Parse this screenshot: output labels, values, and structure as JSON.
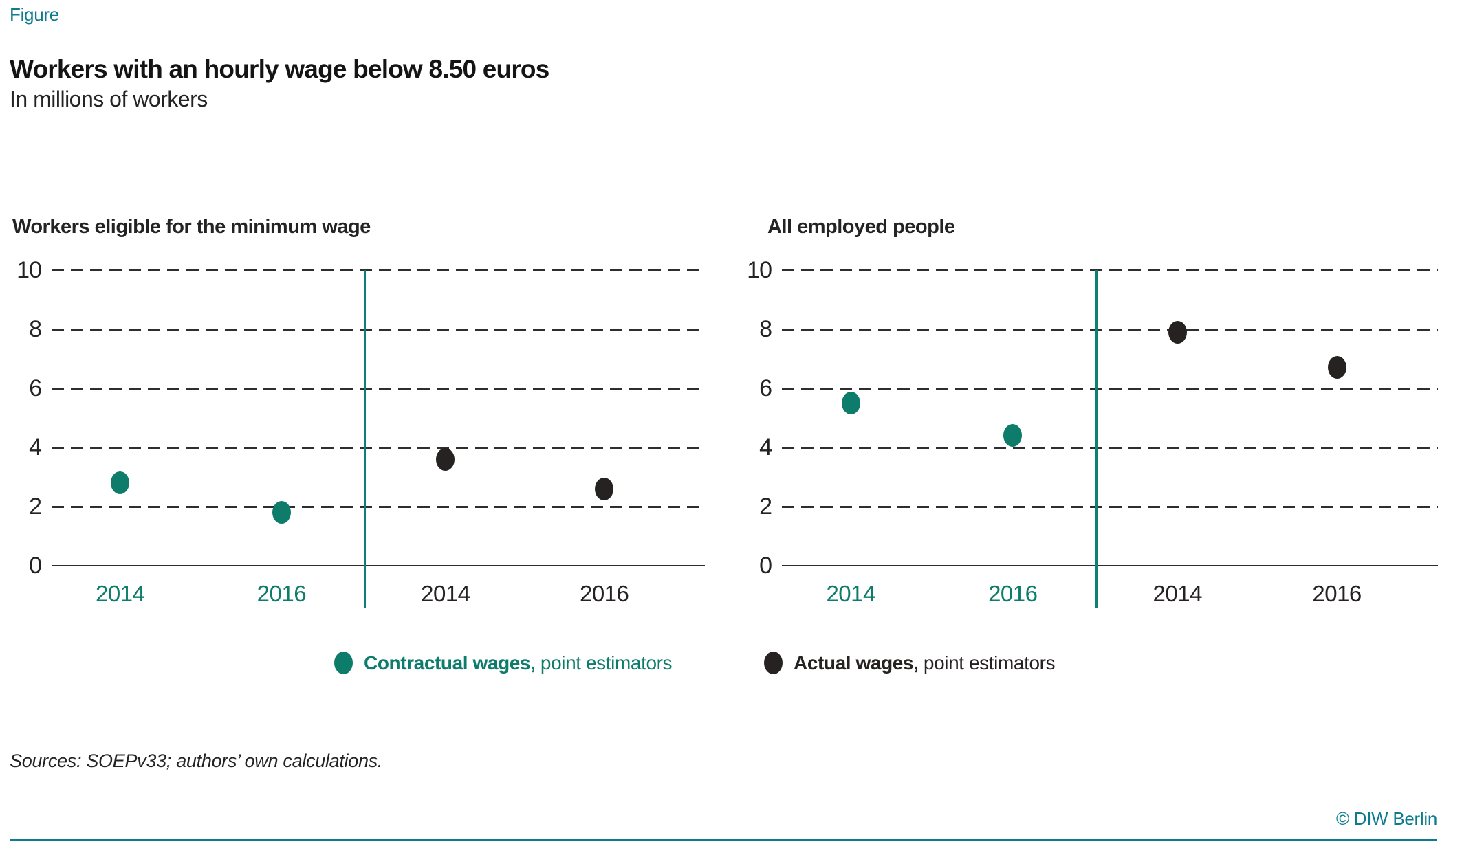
{
  "figure_label": "Figure",
  "title": "Workers with an hourly wage below 8.50 euros",
  "subtitle": "In millions of workers",
  "colors": {
    "accent_blue_teal": "#0d7b8e",
    "series_teal": "#0e7c6b",
    "series_black": "#262221",
    "grid": "#2e2e2e",
    "divider_teal": "#0e8073"
  },
  "chart_data": {
    "type": "scatter",
    "title": "Workers with an hourly wage below 8.50 euros",
    "subtitle": "In millions of workers",
    "ylabel": "",
    "xlabel": "",
    "ylim": [
      0,
      10
    ],
    "y_ticks": [
      0,
      2,
      4,
      6,
      8,
      10
    ],
    "grid": "horizontal dashed",
    "legend_position": "bottom",
    "series": [
      {
        "key": "contractual",
        "label_bold": "Contractual wages,",
        "label_rest": " point estimators",
        "color": "#0e7c6b"
      },
      {
        "key": "actual",
        "label_bold": "Actual wages,",
        "label_rest": " point estimators",
        "color": "#262221"
      }
    ],
    "panels": [
      {
        "title": "Workers eligible for the minimum wage",
        "points": [
          {
            "series": "contractual",
            "year": "2014",
            "value": 2.8
          },
          {
            "series": "contractual",
            "year": "2016",
            "value": 1.8
          },
          {
            "series": "actual",
            "year": "2014",
            "value": 3.6
          },
          {
            "series": "actual",
            "year": "2016",
            "value": 2.6
          }
        ]
      },
      {
        "title": "All employed people",
        "points": [
          {
            "series": "contractual",
            "year": "2014",
            "value": 5.5
          },
          {
            "series": "contractual",
            "year": "2016",
            "value": 4.4
          },
          {
            "series": "actual",
            "year": "2014",
            "value": 7.9
          },
          {
            "series": "actual",
            "year": "2016",
            "value": 6.7
          }
        ]
      }
    ]
  },
  "footer": {
    "sources": "Sources: SOEPv33; authors’ own calculations.",
    "copyright": "© DIW Berlin"
  }
}
